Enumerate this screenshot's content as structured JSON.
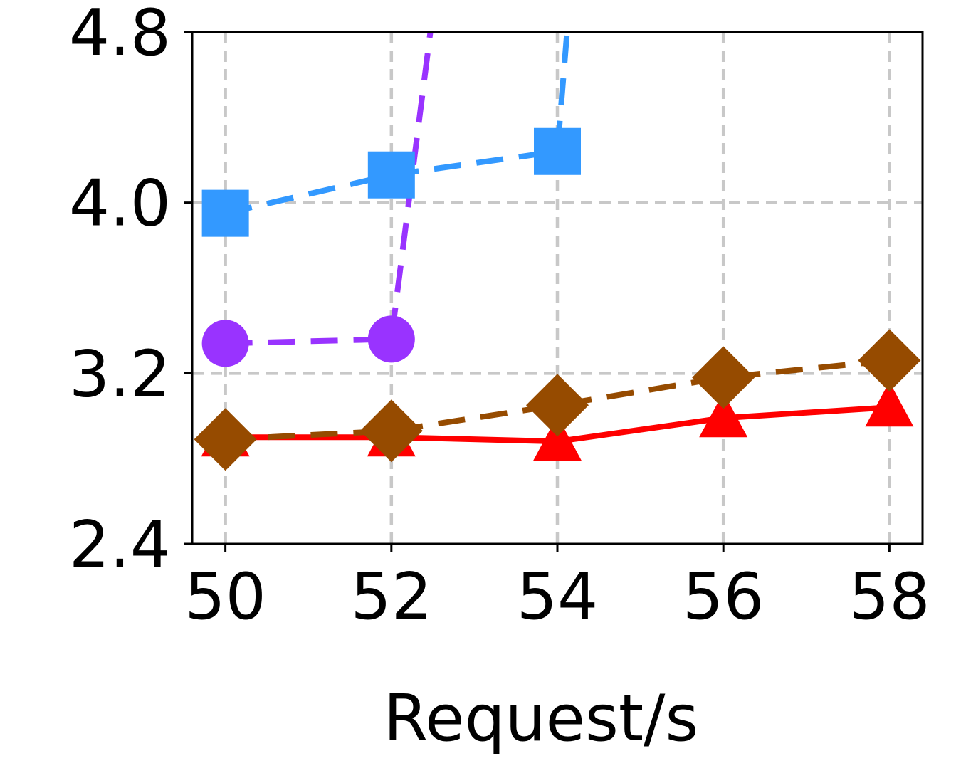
{
  "chart_data": {
    "type": "line",
    "xlabel": "Request/s",
    "ylabel": "",
    "x": [
      50,
      52,
      54,
      56,
      58
    ],
    "xlim": [
      49.6,
      58.4
    ],
    "ylim": [
      2.4,
      4.8
    ],
    "xticks": [
      50,
      52,
      54,
      56,
      58
    ],
    "yticks": [
      2.4,
      3.2,
      4.0,
      4.8
    ],
    "xtick_labels": [
      "50",
      "52",
      "54",
      "56",
      "58"
    ],
    "ytick_labels": [
      "2.4",
      "3.2",
      "4.0",
      "4.8"
    ],
    "grid": true,
    "series": [
      {
        "color": "#3399ff",
        "line": "dashed",
        "marker": "square",
        "points": [
          [
            50,
            3.95
          ],
          [
            52,
            4.13
          ],
          [
            54,
            4.24
          ],
          [
            54.2,
            5.2
          ]
        ],
        "markers": [
          [
            50,
            3.95
          ],
          [
            52,
            4.13
          ],
          [
            54,
            4.24
          ]
        ]
      },
      {
        "color": "#9933ff",
        "line": "dashed",
        "marker": "circle",
        "points": [
          [
            50,
            3.34
          ],
          [
            52,
            3.36
          ],
          [
            52.6,
            5.2
          ]
        ],
        "markers": [
          [
            50,
            3.34
          ],
          [
            52,
            3.36
          ]
        ]
      },
      {
        "color": "#ff0000",
        "line": "solid",
        "marker": "triangle",
        "points": [
          [
            50,
            2.9
          ],
          [
            52,
            2.9
          ],
          [
            54,
            2.88
          ],
          [
            56,
            2.99
          ],
          [
            58,
            3.04
          ]
        ],
        "markers": [
          [
            50,
            2.9
          ],
          [
            52,
            2.9
          ],
          [
            54,
            2.88
          ],
          [
            56,
            2.99
          ],
          [
            58,
            3.04
          ]
        ]
      },
      {
        "color": "#964b00",
        "line": "dashed",
        "marker": "diamond",
        "points": [
          [
            50,
            2.89
          ],
          [
            52,
            2.93
          ],
          [
            54,
            3.05
          ],
          [
            56,
            3.18
          ],
          [
            58,
            3.26
          ]
        ],
        "markers": [
          [
            50,
            2.89
          ],
          [
            52,
            2.93
          ],
          [
            54,
            3.05
          ],
          [
            56,
            3.18
          ],
          [
            58,
            3.26
          ]
        ]
      }
    ]
  }
}
